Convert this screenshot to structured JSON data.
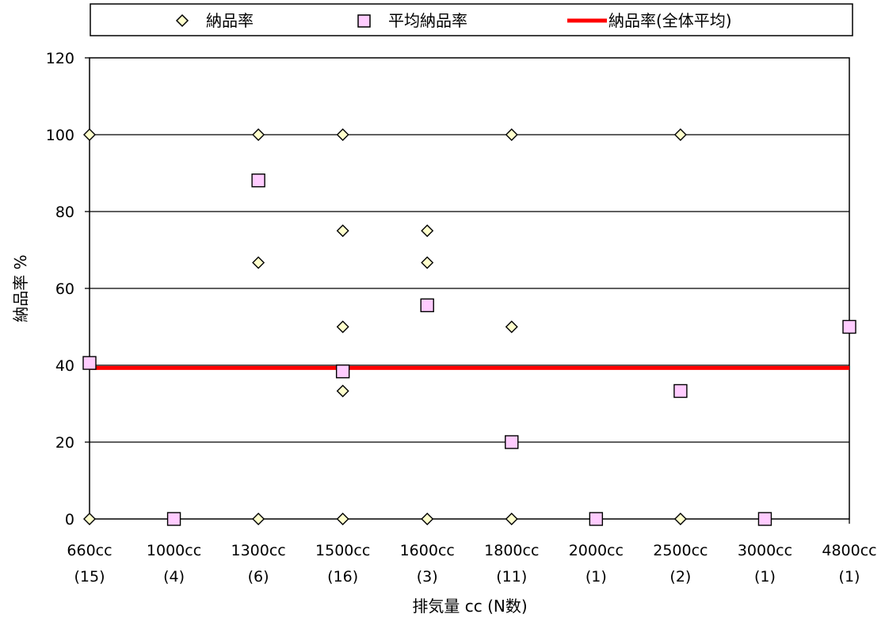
{
  "chart_data": {
    "type": "scatter",
    "title": "",
    "xlabel": "排気量 cc (N数)",
    "ylabel": "納品率 %",
    "ylim": [
      0,
      120
    ],
    "yticks": [
      0,
      20,
      40,
      60,
      80,
      100,
      120
    ],
    "grid": "horizontal",
    "legend_position": "top",
    "categories": [
      {
        "name": "660cc",
        "n": "(15)"
      },
      {
        "name": "1000cc",
        "n": "(4)"
      },
      {
        "name": "1300cc",
        "n": "(6)"
      },
      {
        "name": "1500cc",
        "n": "(16)"
      },
      {
        "name": "1600cc",
        "n": "(3)"
      },
      {
        "name": "1800cc",
        "n": "(11)"
      },
      {
        "name": "2000cc",
        "n": "(1)"
      },
      {
        "name": "2500cc",
        "n": "(2)"
      },
      {
        "name": "3000cc",
        "n": "(1)"
      },
      {
        "name": "4800cc",
        "n": "(1)"
      }
    ],
    "series": [
      {
        "name": "納品率",
        "marker": "diamond",
        "color": "#FFFFCC",
        "points": [
          {
            "x": "660cc",
            "y": 100
          },
          {
            "x": "660cc",
            "y": 0
          },
          {
            "x": "1300cc",
            "y": 100
          },
          {
            "x": "1300cc",
            "y": 66.7
          },
          {
            "x": "1300cc",
            "y": 0
          },
          {
            "x": "1500cc",
            "y": 100
          },
          {
            "x": "1500cc",
            "y": 75
          },
          {
            "x": "1500cc",
            "y": 50
          },
          {
            "x": "1500cc",
            "y": 33.3
          },
          {
            "x": "1500cc",
            "y": 0
          },
          {
            "x": "1600cc",
            "y": 75
          },
          {
            "x": "1600cc",
            "y": 66.7
          },
          {
            "x": "1600cc",
            "y": 0
          },
          {
            "x": "1800cc",
            "y": 100
          },
          {
            "x": "1800cc",
            "y": 50
          },
          {
            "x": "1800cc",
            "y": 0
          },
          {
            "x": "2500cc",
            "y": 100
          },
          {
            "x": "2500cc",
            "y": 0
          }
        ]
      },
      {
        "name": "平均納品率",
        "marker": "square",
        "color": "#FFCCFF",
        "points": [
          {
            "x": "660cc",
            "y": 40.6
          },
          {
            "x": "1000cc",
            "y": 0
          },
          {
            "x": "1300cc",
            "y": 88.1
          },
          {
            "x": "1500cc",
            "y": 38.4
          },
          {
            "x": "1600cc",
            "y": 55.6
          },
          {
            "x": "1800cc",
            "y": 20
          },
          {
            "x": "2000cc",
            "y": 0
          },
          {
            "x": "2500cc",
            "y": 33.3
          },
          {
            "x": "3000cc",
            "y": 0
          },
          {
            "x": "4800cc",
            "y": 50
          }
        ]
      },
      {
        "name": "納品率(全体平均)",
        "marker": "line",
        "color": "#FF0000",
        "y": 39.3
      }
    ]
  }
}
